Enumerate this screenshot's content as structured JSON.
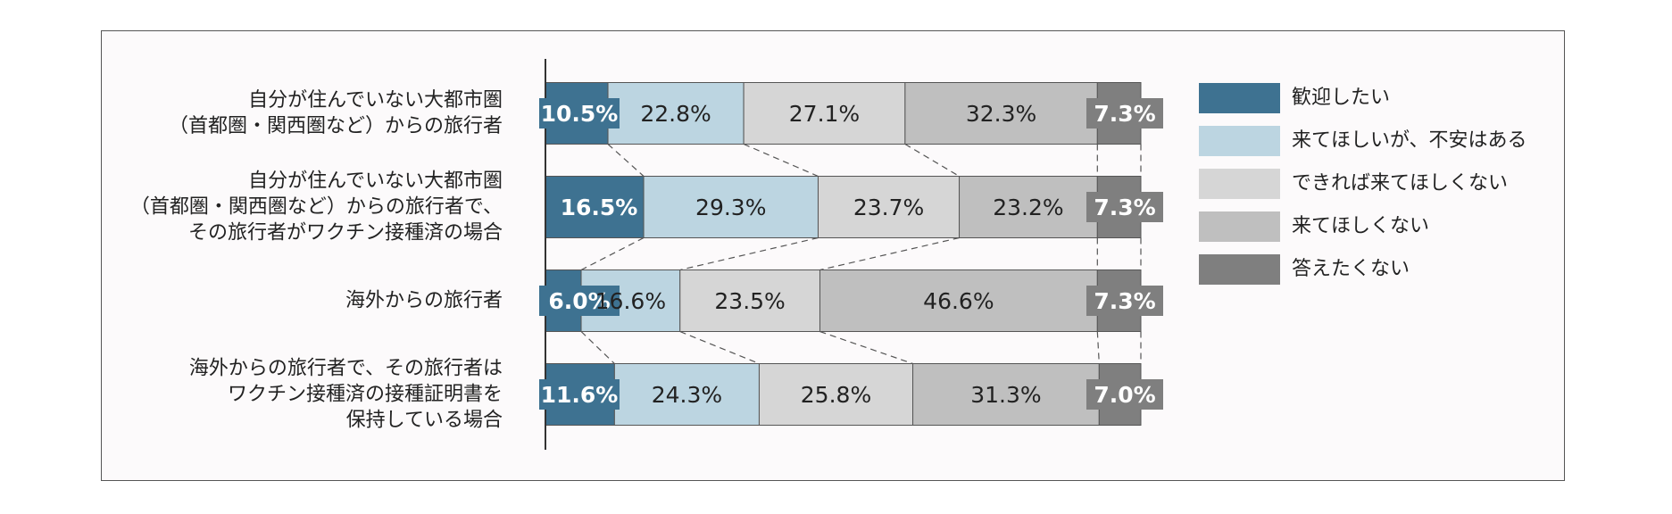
{
  "chart_data": {
    "type": "bar",
    "orientation": "horizontal",
    "stacked": true,
    "percent": true,
    "xlim": [
      0,
      100
    ],
    "categories": [
      [
        "自分が住んでいない大都市圏",
        "（首都圏・関西圏など）からの旅行者"
      ],
      [
        "自分が住んでいない大都市圏",
        "（首都圏・関西圏など）からの旅行者で、",
        "その旅行者がワクチン接種済の場合"
      ],
      [
        "海外からの旅行者"
      ],
      [
        "海外からの旅行者で、その旅行者は",
        "ワクチン接種済の接種証明書を",
        "保持している場合"
      ]
    ],
    "series": [
      {
        "name": "歓迎したい",
        "color": "#3e7291",
        "values": [
          10.5,
          16.5,
          6.0,
          11.6
        ],
        "labels": [
          "10.5%",
          "16.5%",
          "6.0%",
          "11.6%"
        ]
      },
      {
        "name": "来てほしいが、不安はある",
        "color": "#bcd5e1",
        "values": [
          22.8,
          29.3,
          16.6,
          24.3
        ],
        "labels": [
          "22.8%",
          "29.3%",
          "16.6%",
          "24.3%"
        ]
      },
      {
        "name": "できれば来てほしくない",
        "color": "#d6d6d6",
        "values": [
          27.1,
          23.7,
          23.5,
          25.8
        ],
        "labels": [
          "27.1%",
          "23.7%",
          "23.5%",
          "25.8%"
        ]
      },
      {
        "name": "来てほしくない",
        "color": "#bfbfbf",
        "values": [
          32.3,
          23.2,
          46.6,
          31.3
        ],
        "labels": [
          "32.3%",
          "23.2%",
          "46.6%",
          "31.3%"
        ]
      },
      {
        "name": "答えたくない",
        "color": "#7f7f7f",
        "values": [
          7.3,
          7.3,
          7.3,
          7.0
        ],
        "labels": [
          "7.3%",
          "7.3%",
          "7.3%",
          "7.0%"
        ]
      }
    ],
    "connector_lines": true,
    "legend_position": "right",
    "grid": false
  }
}
